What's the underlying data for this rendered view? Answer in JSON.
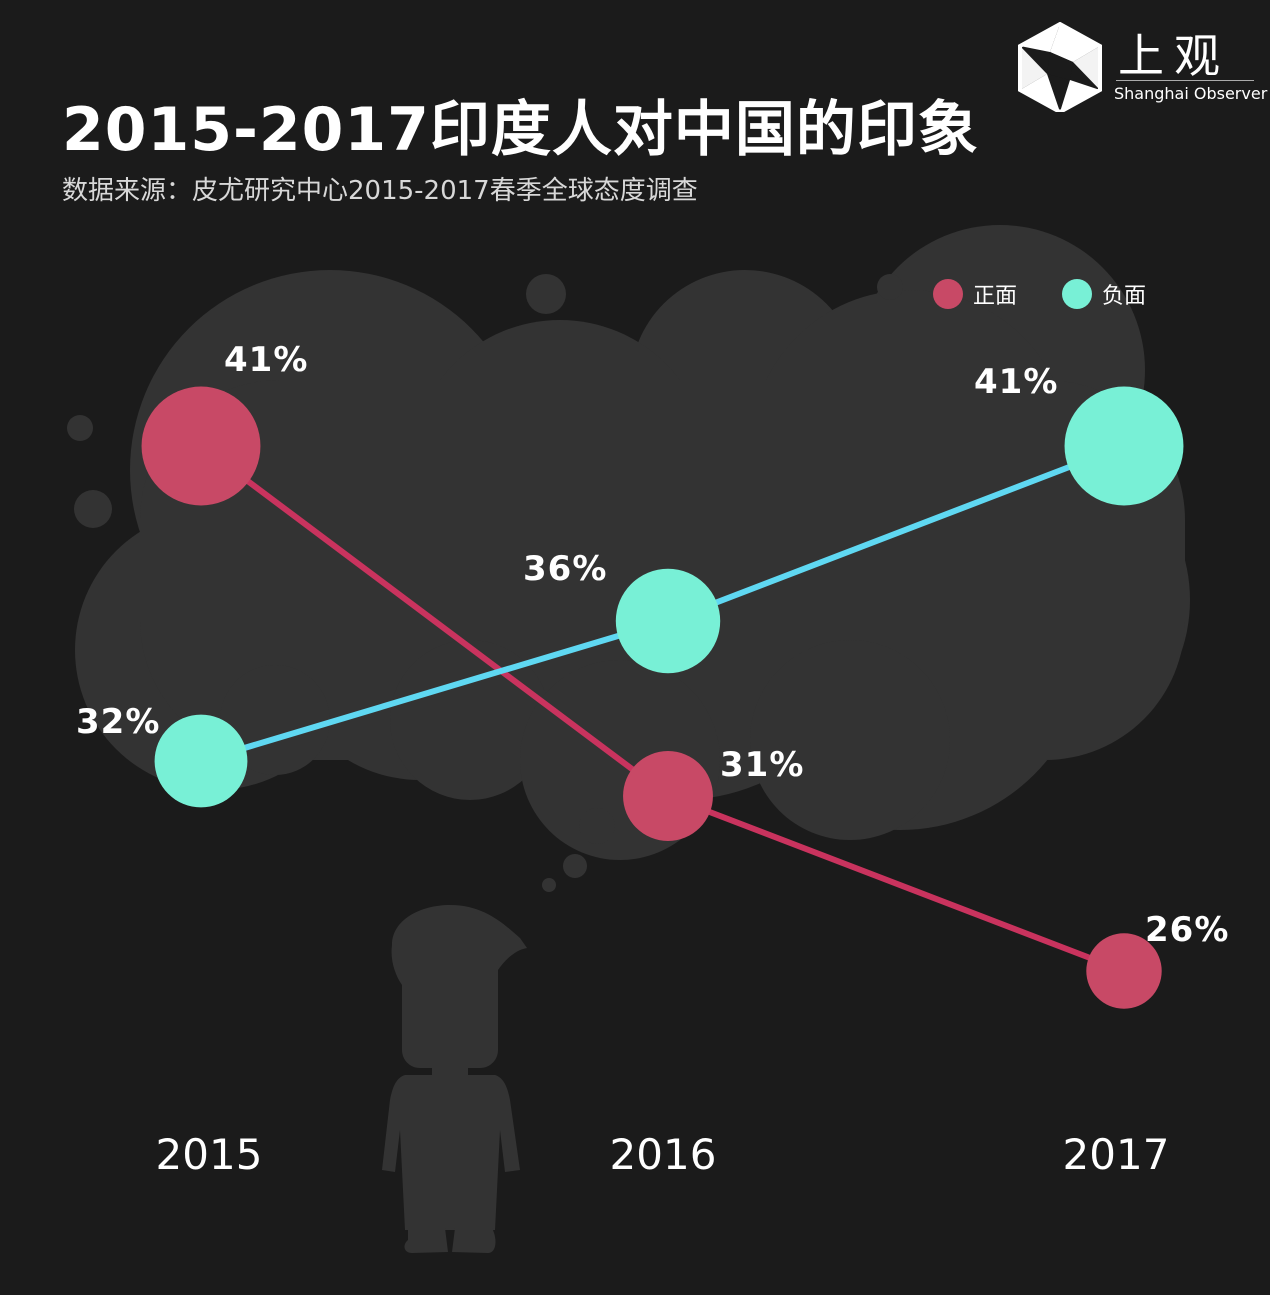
{
  "title": "2015-2017印度人对中国的印象",
  "subtitle": "数据来源：皮尤研究中心2015-2017春季全球态度调查",
  "brand": {
    "name_cn": "上观",
    "name_en": "Shanghai Observer",
    "logo_icon": "aperture-hexagon-icon"
  },
  "colors": {
    "background": "#1b1b1b",
    "cloud": "#333333",
    "positive": "#c84966",
    "positive_line": "#c9335e",
    "negative": "#78f0d6",
    "negative_line": "#5fd8f2"
  },
  "chart_data": {
    "type": "line",
    "title": "2015-2017印度人对中国的印象",
    "categories": [
      "2015",
      "2016",
      "2017"
    ],
    "series": [
      {
        "name": "正面",
        "values": [
          41,
          31,
          26
        ],
        "labels": [
          "41%",
          "31%",
          "26%"
        ]
      },
      {
        "name": "负面",
        "values": [
          32,
          36,
          41
        ],
        "labels": [
          "32%",
          "36%",
          "41%"
        ]
      }
    ],
    "legend": "top-right",
    "grid": false,
    "unit": "%"
  }
}
